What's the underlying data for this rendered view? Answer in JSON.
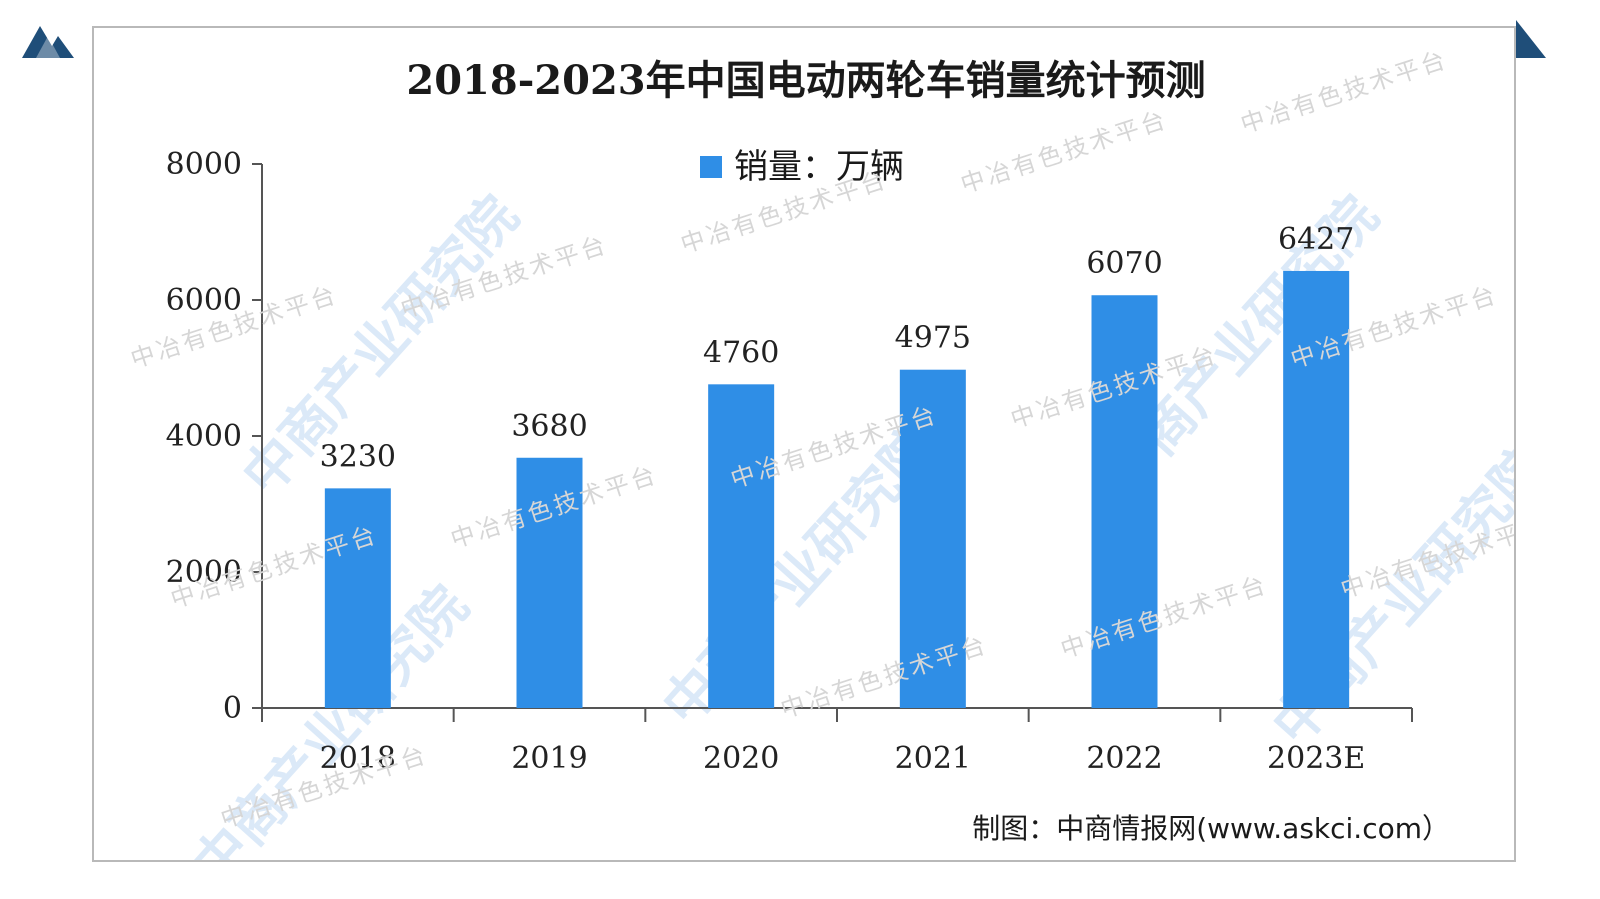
{
  "colors": {
    "bar": "#2f8ee6",
    "axis": "#555555",
    "logo": "#1f4e79",
    "frame": "#b9b9b9"
  },
  "watermarks": {
    "faint_text": "中冶有色技术平台",
    "big_text": "中商产业研究院"
  },
  "source_note": "制图：中商情报网(www.askci.com）",
  "chart_data": {
    "type": "bar",
    "title": "2018-2023年中国电动两轮车销量统计预测",
    "categories": [
      "2018",
      "2019",
      "2020",
      "2021",
      "2022",
      "2023E"
    ],
    "series": [
      {
        "name": "销量：万辆",
        "values": [
          3230,
          3680,
          4760,
          4975,
          6070,
          6427
        ]
      }
    ],
    "data_labels": [
      "3230",
      "3680",
      "4760",
      "4975",
      "6070",
      "6427"
    ],
    "ylim": [
      0,
      8000
    ],
    "yticks": [
      0,
      2000,
      4000,
      6000,
      8000
    ],
    "grid": false,
    "legend_position": "top"
  }
}
